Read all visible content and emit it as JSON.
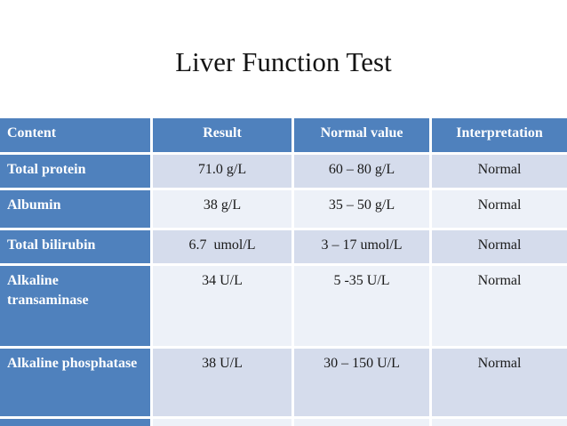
{
  "title": "Liver Function Test",
  "colors": {
    "header_bg": "#4f81bd",
    "band_dark": "#d5dcec",
    "band_light": "#edf1f8",
    "header_text": "#ffffff",
    "body_text": "#1a1a1a"
  },
  "table": {
    "headers": [
      "Content",
      "Result",
      "Normal value",
      "Interpretation"
    ],
    "rows": [
      {
        "content": "Total protein",
        "result": "71.0 g/L",
        "normal": "60 – 80 g/L",
        "interpretation": "Normal"
      },
      {
        "content": "Albumin",
        "result": "38 g/L",
        "normal": "35 – 50 g/L",
        "interpretation": "Normal"
      },
      {
        "content": "Total bilirubin",
        "result": "6.7  umol/L",
        "normal": "3 – 17 umol/L",
        "interpretation": "Normal"
      },
      {
        "content": "Alkaline transaminase",
        "result": "34 U/L",
        "normal": "5 -35 U/L",
        "interpretation": "Normal"
      },
      {
        "content": "Alkaline phosphatase",
        "result": "38 U/L",
        "normal": "30 – 150 U/L",
        "interpretation": "Normal"
      }
    ]
  }
}
